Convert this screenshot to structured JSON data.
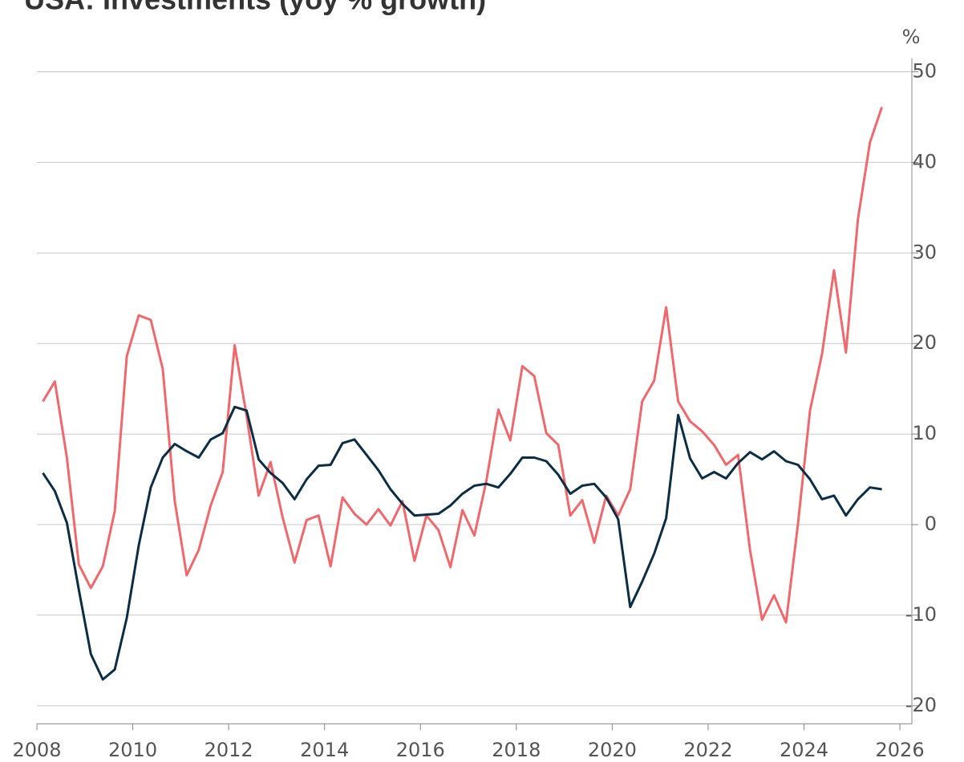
{
  "chart_data": {
    "type": "line",
    "title": "USA: Investments (yoy % growth)",
    "y_unit": "%",
    "x": [
      2008.125,
      2008.375,
      2008.625,
      2008.875,
      2009.125,
      2009.375,
      2009.625,
      2009.875,
      2010.125,
      2010.375,
      2010.625,
      2010.875,
      2011.125,
      2011.375,
      2011.625,
      2011.875,
      2012.125,
      2012.375,
      2012.625,
      2012.875,
      2013.125,
      2013.375,
      2013.625,
      2013.875,
      2014.125,
      2014.375,
      2014.625,
      2014.875,
      2015.125,
      2015.375,
      2015.625,
      2015.875,
      2016.125,
      2016.375,
      2016.625,
      2016.875,
      2017.125,
      2017.375,
      2017.625,
      2017.875,
      2018.125,
      2018.375,
      2018.625,
      2018.875,
      2019.125,
      2019.375,
      2019.625,
      2019.875,
      2020.125,
      2020.375,
      2020.625,
      2020.875,
      2021.125,
      2021.375,
      2021.625,
      2021.875,
      2022.125,
      2022.375,
      2022.625,
      2022.875,
      2023.125,
      2023.375,
      2023.625,
      2023.875,
      2024.125,
      2024.375,
      2024.625,
      2024.875,
      2025.125,
      2025.375,
      2025.625
    ],
    "series": [
      {
        "color": "#0b2e44",
        "values": [
          5.7,
          3.7,
          0.2,
          -7.2,
          -14.3,
          -17.1,
          -16.0,
          -10.3,
          -2.3,
          4.1,
          7.4,
          8.9,
          8.1,
          7.4,
          9.4,
          10.1,
          13.0,
          12.6,
          7.2,
          5.7,
          4.6,
          2.8,
          5.0,
          6.5,
          6.6,
          9.0,
          9.4,
          7.7,
          6.0,
          3.9,
          2.3,
          1.0,
          1.1,
          1.2,
          2.1,
          3.4,
          4.3,
          4.5,
          4.1,
          5.6,
          7.4,
          7.4,
          7.0,
          5.5,
          3.4,
          4.3,
          4.5,
          3.0,
          0.6,
          -9.1,
          -6.3,
          -3.2,
          0.7,
          12.1,
          7.3,
          5.1,
          5.8,
          5.1,
          6.8,
          8.0,
          7.2,
          8.1,
          7.0,
          6.6,
          5.0,
          2.8,
          3.2,
          1.0,
          2.8,
          4.1,
          3.9
        ]
      },
      {
        "color": "#f0686c",
        "values": [
          13.6,
          15.8,
          7.4,
          -4.4,
          -7.0,
          -4.6,
          1.5,
          18.6,
          23.1,
          22.6,
          17.2,
          2.6,
          -5.6,
          -2.8,
          2.1,
          5.8,
          19.8,
          12.0,
          3.2,
          6.9,
          0.8,
          -4.2,
          0.5,
          1.0,
          -4.6,
          3.0,
          1.2,
          0.0,
          1.7,
          -0.1,
          2.6,
          -4.0,
          1.0,
          -0.6,
          -4.7,
          1.6,
          -1.2,
          4.8,
          12.7,
          9.3,
          17.5,
          16.4,
          10.1,
          8.8,
          1.0,
          2.7,
          -2.0,
          3.2,
          1.0,
          3.9,
          13.6,
          15.9,
          24.0,
          13.6,
          11.4,
          10.3,
          8.8,
          6.6,
          7.7,
          -2.8,
          -10.5,
          -7.8,
          -10.8,
          0.1,
          12.6,
          18.8,
          28.1,
          19.0,
          33.7,
          42.2,
          46.1
        ]
      }
    ],
    "xlim": [
      2008,
      2026.25
    ],
    "xticks": [
      2008,
      2010,
      2012,
      2014,
      2016,
      2018,
      2020,
      2022,
      2024,
      2026
    ],
    "ylim": [
      -22,
      51.5
    ],
    "yticks": [
      -20,
      -10,
      0,
      10,
      20,
      30,
      40,
      50
    ],
    "grid": true
  }
}
